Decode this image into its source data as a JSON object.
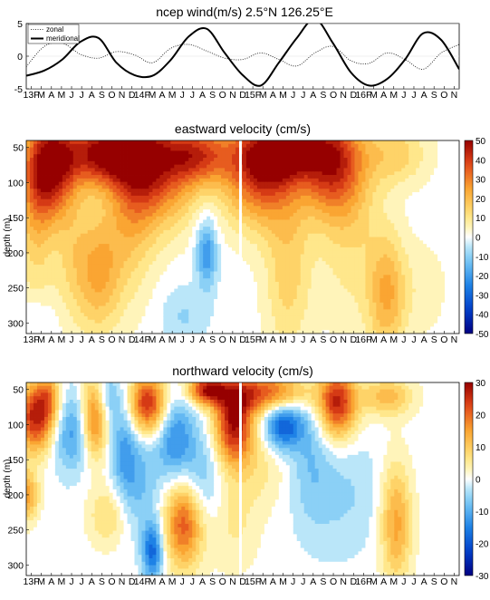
{
  "chart_data": [
    {
      "type": "line",
      "title": "ncep wind(m/s) 2.5°N 126.25°E",
      "ylim": [
        -5,
        5
      ],
      "yticks": [
        5,
        0,
        -5
      ],
      "legend_position": "top-left",
      "series": [
        {
          "name": "zonal",
          "style": "dotted",
          "color": "#000000",
          "t": [
            0,
            2,
            4,
            6,
            8,
            10,
            12,
            14,
            16,
            18,
            20,
            22,
            24,
            26,
            28,
            30,
            32,
            34,
            36,
            38,
            40,
            42,
            44,
            46,
            48
          ],
          "values": [
            -1.6,
            1.5,
            2.0,
            0.3,
            -0.3,
            0.7,
            0.2,
            -1.0,
            1.2,
            1.8,
            0.8,
            -0.3,
            -0.5,
            0.5,
            -0.5,
            -1.5,
            0.5,
            1.5,
            -0.7,
            -1.1,
            0.5,
            -0.5,
            -2.0,
            0.5,
            1.8
          ]
        },
        {
          "name": "meridional",
          "style": "solid",
          "color": "#000000",
          "t": [
            0,
            2,
            4,
            6,
            8,
            10,
            12,
            14,
            16,
            18,
            20,
            22,
            24,
            26,
            28,
            30,
            32,
            34,
            36,
            38,
            40,
            42,
            44,
            46,
            48
          ],
          "values": [
            -3.0,
            -2.2,
            -0.5,
            2.2,
            2.8,
            -1.0,
            -2.9,
            -3.0,
            -0.6,
            3.0,
            4.2,
            0.5,
            -2.9,
            -4.5,
            -1.0,
            2.8,
            5.7,
            2.0,
            -2.5,
            -4.5,
            -3.5,
            -0.5,
            3.5,
            2.5,
            -2.0
          ]
        }
      ],
      "x_tick_labels": [
        "13F",
        "M",
        "A",
        "M",
        "J",
        "J",
        "A",
        "S",
        "O",
        "N",
        "D",
        "14F",
        "M",
        "A",
        "M",
        "J",
        "J",
        "A",
        "S",
        "O",
        "N",
        "D",
        "15F",
        "M",
        "A",
        "M",
        "J",
        "J",
        "A",
        "S",
        "O",
        "N",
        "D",
        "16F",
        "M",
        "A",
        "M",
        "J",
        "J",
        "A",
        "S",
        "O",
        "N"
      ]
    },
    {
      "type": "heatmap",
      "title": "eastward velocity (cm/s)",
      "ylabel": "depth (m)",
      "yticks": [
        50,
        100,
        150,
        200,
        250,
        300
      ],
      "ylim": [
        40,
        315
      ],
      "colorbar_ticks": [
        50,
        40,
        30,
        20,
        10,
        0,
        -10,
        -20,
        -30,
        -40,
        -50
      ],
      "clim": [
        -50,
        50
      ],
      "blobs": [
        {
          "t": 2.5,
          "d": 80,
          "st": 2.0,
          "sd": 50,
          "a": 45
        },
        {
          "t": 1.0,
          "d": 160,
          "st": 1.5,
          "sd": 80,
          "a": 15
        },
        {
          "t": 6.5,
          "d": 55,
          "st": 3.0,
          "sd": 35,
          "a": 25
        },
        {
          "t": 9.5,
          "d": 60,
          "st": 2.5,
          "sd": 30,
          "a": 30
        },
        {
          "t": 8.0,
          "d": 230,
          "st": 1.8,
          "sd": 60,
          "a": 22
        },
        {
          "t": 5.0,
          "d": 200,
          "st": 1.5,
          "sd": 70,
          "a": 10
        },
        {
          "t": 13.5,
          "d": 70,
          "st": 2.5,
          "sd": 60,
          "a": 40
        },
        {
          "t": 11.5,
          "d": 150,
          "st": 2.0,
          "sd": 80,
          "a": 15
        },
        {
          "t": 19.0,
          "d": 60,
          "st": 2.5,
          "sd": 30,
          "a": 35
        },
        {
          "t": 17.0,
          "d": 100,
          "st": 2.0,
          "sd": 50,
          "a": 10
        },
        {
          "t": 20.0,
          "d": 200,
          "st": 0.8,
          "sd": 35,
          "a": -22
        },
        {
          "t": 17.5,
          "d": 290,
          "st": 1.8,
          "sd": 30,
          "a": -8
        },
        {
          "t": 1.0,
          "d": 295,
          "st": 1.5,
          "sd": 20,
          "a": -6
        },
        {
          "t": 26.0,
          "d": 80,
          "st": 3.0,
          "sd": 55,
          "a": 42
        },
        {
          "t": 29.0,
          "d": 55,
          "st": 3.0,
          "sd": 30,
          "a": 30
        },
        {
          "t": 29.0,
          "d": 230,
          "st": 1.8,
          "sd": 80,
          "a": 15
        },
        {
          "t": 34.0,
          "d": 70,
          "st": 2.5,
          "sd": 55,
          "a": 40
        },
        {
          "t": 36.0,
          "d": 180,
          "st": 2.5,
          "sd": 90,
          "a": 10
        },
        {
          "t": 40.0,
          "d": 260,
          "st": 1.5,
          "sd": 60,
          "a": 22
        },
        {
          "t": 41.0,
          "d": 60,
          "st": 2.5,
          "sd": 30,
          "a": 15
        },
        {
          "t": 44.0,
          "d": 250,
          "st": 2.0,
          "sd": 50,
          "a": 5
        }
      ],
      "x_tick_labels": [
        "13F",
        "M",
        "A",
        "M",
        "J",
        "J",
        "A",
        "S",
        "O",
        "N",
        "D",
        "14F",
        "M",
        "A",
        "M",
        "J",
        "J",
        "A",
        "S",
        "O",
        "N",
        "D",
        "15F",
        "M",
        "A",
        "M",
        "J",
        "J",
        "A",
        "S",
        "O",
        "N",
        "D",
        "16F",
        "M",
        "A",
        "M",
        "J",
        "J",
        "A",
        "S",
        "O",
        "N"
      ]
    },
    {
      "type": "heatmap",
      "title": "northward velocity (cm/s)",
      "ylabel": "depth (m)",
      "yticks": [
        50,
        100,
        150,
        200,
        250,
        300
      ],
      "ylim": [
        40,
        315
      ],
      "colorbar_ticks": [
        30,
        20,
        10,
        0,
        -10,
        -20,
        -30
      ],
      "clim": [
        -30,
        30
      ],
      "blobs": [
        {
          "t": 1.0,
          "d": 90,
          "st": 1.5,
          "sd": 35,
          "a": 26
        },
        {
          "t": 2.5,
          "d": 60,
          "st": 1.0,
          "sd": 25,
          "a": 12
        },
        {
          "t": 0.2,
          "d": 200,
          "st": 0.8,
          "sd": 25,
          "a": 15
        },
        {
          "t": 5.0,
          "d": 110,
          "st": 1.5,
          "sd": 40,
          "a": -12
        },
        {
          "t": 7.5,
          "d": 90,
          "st": 1.0,
          "sd": 40,
          "a": 20
        },
        {
          "t": 9.0,
          "d": 60,
          "st": 1.0,
          "sd": 25,
          "a": -8
        },
        {
          "t": 9.0,
          "d": 230,
          "st": 1.5,
          "sd": 30,
          "a": 8
        },
        {
          "t": 10.8,
          "d": 130,
          "st": 1.0,
          "sd": 50,
          "a": -10
        },
        {
          "t": 13.5,
          "d": 70,
          "st": 1.5,
          "sd": 30,
          "a": 26
        },
        {
          "t": 12.5,
          "d": 180,
          "st": 1.5,
          "sd": 50,
          "a": -8
        },
        {
          "t": 14.0,
          "d": 280,
          "st": 0.8,
          "sd": 30,
          "a": -18
        },
        {
          "t": 16.5,
          "d": 120,
          "st": 1.5,
          "sd": 45,
          "a": -14
        },
        {
          "t": 17.5,
          "d": 240,
          "st": 1.5,
          "sd": 45,
          "a": 22
        },
        {
          "t": 20.0,
          "d": 50,
          "st": 1.5,
          "sd": 15,
          "a": 25
        },
        {
          "t": 19.5,
          "d": 180,
          "st": 1.5,
          "sd": 50,
          "a": -8
        },
        {
          "t": 23.0,
          "d": 100,
          "st": 1.5,
          "sd": 40,
          "a": 28
        },
        {
          "t": 26.5,
          "d": 55,
          "st": 3.5,
          "sd": 20,
          "a": 22
        },
        {
          "t": 28.5,
          "d": 100,
          "st": 1.5,
          "sd": 25,
          "a": -20
        },
        {
          "t": 26.0,
          "d": 160,
          "st": 2.0,
          "sd": 40,
          "a": 5
        },
        {
          "t": 34.5,
          "d": 70,
          "st": 1.5,
          "sd": 35,
          "a": 26
        },
        {
          "t": 31.5,
          "d": 140,
          "st": 1.5,
          "sd": 70,
          "a": -6
        },
        {
          "t": 41.0,
          "d": 240,
          "st": 1.2,
          "sd": 60,
          "a": 15
        },
        {
          "t": 23.0,
          "d": 240,
          "st": 2.0,
          "sd": 50,
          "a": 5
        },
        {
          "t": 35.0,
          "d": 200,
          "st": 3.0,
          "sd": 60,
          "a": -5
        },
        {
          "t": 40.0,
          "d": 60,
          "st": 2.0,
          "sd": 20,
          "a": 12
        }
      ],
      "x_tick_labels": [
        "13F",
        "M",
        "A",
        "M",
        "J",
        "J",
        "A",
        "S",
        "O",
        "N",
        "D",
        "14F",
        "M",
        "A",
        "M",
        "J",
        "J",
        "A",
        "S",
        "O",
        "N",
        "D",
        "15F",
        "M",
        "A",
        "M",
        "J",
        "J",
        "A",
        "S",
        "O",
        "N",
        "D",
        "16F",
        "M",
        "A",
        "M",
        "J",
        "J",
        "A",
        "S",
        "O",
        "N"
      ]
    }
  ]
}
